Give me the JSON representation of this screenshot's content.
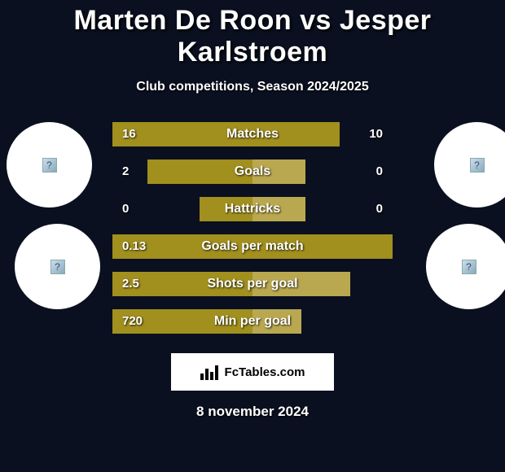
{
  "title": "Marten De Roon vs Jesper Karlstroem",
  "subtitle": "Club competitions, Season 2024/2025",
  "date": "8 november 2024",
  "credit": "FcTables.com",
  "colors": {
    "background": "#0a1020",
    "bar_primary": "#a18f1e",
    "bar_secondary": "#b9a84f",
    "avatar_bg": "#ffffff"
  },
  "stats": [
    {
      "label": "Matches",
      "left_value": "16",
      "right_value": "10",
      "left_width": 100,
      "right_width": 62,
      "right_alt": false
    },
    {
      "label": "Goals",
      "left_value": "2",
      "right_value": "0",
      "left_width": 75,
      "right_width": 38,
      "right_alt": true
    },
    {
      "label": "Hattricks",
      "left_value": "0",
      "right_value": "0",
      "left_width": 38,
      "right_width": 38,
      "right_alt": true
    },
    {
      "label": "Goals per match",
      "left_value": "0.13",
      "right_value": "",
      "left_width": 100,
      "right_width": 100,
      "right_alt": false
    },
    {
      "label": "Shots per goal",
      "left_value": "2.5",
      "right_value": "",
      "left_width": 100,
      "right_width": 70,
      "right_alt": true
    },
    {
      "label": "Min per goal",
      "left_value": "720",
      "right_value": "",
      "left_width": 100,
      "right_width": 35,
      "right_alt": true
    }
  ]
}
